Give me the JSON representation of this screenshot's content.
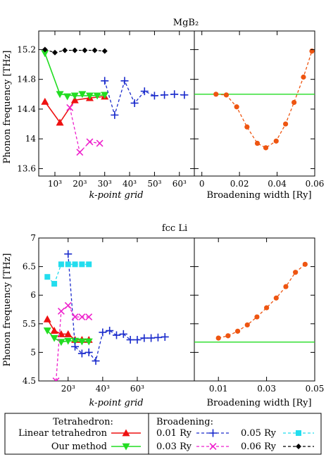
{
  "chart_data": [
    {
      "type": "line",
      "title": "MgB₂",
      "ylabel": "Phonon frequency [THz]",
      "xlabel": "k-point grid",
      "ylim": [
        13.5,
        15.45
      ],
      "yticks": [
        "13.6",
        "14",
        "14.4",
        "14.8",
        "15.2"
      ],
      "xlim": [
        3.5,
        66
      ],
      "xtick_labels": [
        "10³",
        "20³",
        "30³",
        "40³",
        "50³",
        "60³"
      ],
      "x_unit": "k-point grid n (n³)",
      "series": [
        {
          "key": "lt",
          "x": [
            6,
            12,
            18,
            24,
            30
          ],
          "values": [
            14.5,
            14.22,
            14.52,
            14.55,
            14.57
          ]
        },
        {
          "key": "ours",
          "x": [
            6,
            12,
            18,
            24,
            30
          ],
          "values": [
            15.15,
            14.6,
            14.58,
            14.58,
            14.59
          ]
        },
        {
          "key": "b001",
          "x": [
            30,
            34,
            38,
            42,
            46,
            50,
            54,
            58,
            62
          ],
          "values": [
            14.78,
            14.32,
            14.78,
            14.48,
            14.64,
            14.58,
            14.59,
            14.6,
            14.59
          ]
        },
        {
          "key": "b003",
          "x": [
            16,
            20,
            24,
            28
          ],
          "values": [
            14.42,
            13.82,
            13.96,
            13.94
          ]
        },
        {
          "key": "b006",
          "x": [
            6,
            10,
            14,
            18,
            22,
            26,
            30
          ],
          "values": [
            15.2,
            15.16,
            15.19,
            15.19,
            15.19,
            15.19,
            15.18
          ]
        },
        {
          "key": "green-mid-extra",
          "x": [
            15,
            21,
            27
          ],
          "values": [
            14.57,
            14.6,
            14.58
          ]
        }
      ]
    },
    {
      "type": "line",
      "xlabel": "Broadening width [Ry]",
      "xlim": [
        -0.004,
        0.06
      ],
      "xtick_labels": [
        "0",
        "0.02",
        "0.04",
        "0.06"
      ],
      "xticks": [
        0,
        0.02,
        0.04,
        0.06
      ],
      "ylim": [
        13.5,
        15.45
      ],
      "reference_line": 14.6,
      "series": [
        {
          "key": "broadening",
          "x": [
            0.0075,
            0.013,
            0.0185,
            0.024,
            0.0295,
            0.034,
            0.0395,
            0.0445,
            0.049,
            0.054,
            0.0585
          ],
          "values": [
            14.6,
            14.59,
            14.43,
            14.16,
            13.94,
            13.88,
            13.97,
            14.2,
            14.49,
            14.83,
            15.18
          ]
        }
      ]
    },
    {
      "type": "line",
      "title": "fcc Li",
      "ylabel": "Phonon frequency [THz]",
      "xlabel": "k-point grid",
      "ylim": [
        4.5,
        7.0
      ],
      "yticks": [
        "4.5",
        "5",
        "5.5",
        "6",
        "6.5",
        "7"
      ],
      "xlim": [
        3,
        93
      ],
      "xtick_labels": [
        "20³",
        "40³",
        "60³"
      ],
      "xticks": [
        20,
        40,
        60
      ],
      "series": [
        {
          "key": "lt",
          "x": [
            8,
            12,
            16,
            20,
            24,
            28,
            32
          ],
          "values": [
            5.58,
            5.38,
            5.32,
            5.32,
            5.22,
            5.22,
            5.22
          ]
        },
        {
          "key": "ours",
          "x": [
            8,
            12,
            16,
            20,
            24,
            28,
            32
          ],
          "values": [
            5.38,
            5.25,
            5.18,
            5.2,
            5.2,
            5.19,
            5.19
          ]
        },
        {
          "key": "b001",
          "x": [
            20,
            24,
            28,
            32,
            36,
            40,
            44,
            48,
            52,
            56,
            60,
            64,
            68,
            72,
            76
          ],
          "values": [
            6.72,
            5.1,
            4.98,
            5.0,
            4.85,
            5.35,
            5.38,
            5.3,
            5.32,
            5.22,
            5.22,
            5.25,
            5.25,
            5.26,
            5.27
          ]
        },
        {
          "key": "b003",
          "x": [
            13,
            16,
            20,
            24,
            28,
            32
          ],
          "values": [
            4.5,
            5.72,
            5.82,
            5.62,
            5.62,
            5.62
          ]
        },
        {
          "key": "b005",
          "x": [
            8,
            12,
            16,
            20,
            24,
            28,
            32
          ],
          "values": [
            6.32,
            6.2,
            6.54,
            6.54,
            6.54,
            6.54,
            6.54
          ]
        }
      ]
    },
    {
      "type": "line",
      "xlabel": "Broadening width [Ry]",
      "xlim": [
        0.0,
        0.05
      ],
      "xtick_labels": [
        "0.01",
        "0.03",
        "0.05"
      ],
      "xticks": [
        0.01,
        0.03,
        0.05
      ],
      "ylim": [
        4.5,
        7.0
      ],
      "reference_line": 5.18,
      "series": [
        {
          "key": "broadening",
          "x": [
            0.01,
            0.014,
            0.018,
            0.022,
            0.026,
            0.03,
            0.034,
            0.038,
            0.042,
            0.046
          ],
          "values": [
            5.25,
            5.29,
            5.37,
            5.48,
            5.62,
            5.78,
            5.95,
            6.15,
            6.4,
            6.54
          ]
        }
      ]
    }
  ],
  "legend": {
    "tetra_header": "Tetrahedron:",
    "linear_label": "Linear tetrahedron",
    "ours_label": "Our method",
    "broad_header": "Broadening:",
    "b001_label": "0.01 Ry",
    "b003_label": "0.03 Ry",
    "b005_label": "0.05 Ry",
    "b006_label": "0.06 Ry"
  },
  "colors": {
    "lt": "#ee1111",
    "ours": "#22dd22",
    "b001": "#1a2bcc",
    "b003": "#ee22cc",
    "b005": "#22ddee",
    "b006": "#000000",
    "broadening": "#ee5511",
    "reference": "#22dd22"
  }
}
